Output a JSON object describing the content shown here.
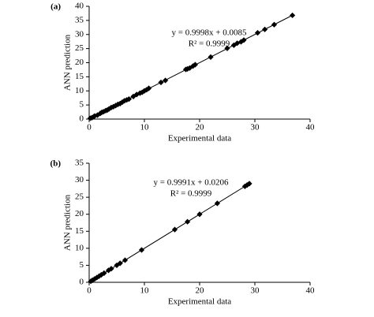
{
  "chart_data": [
    {
      "type": "scatter",
      "label": "(a)",
      "xlabel": "Experimental data",
      "ylabel": "ANN prediction",
      "annotations": [
        "y = 0.9998x + 0.0085",
        "R² = 0.9999"
      ],
      "x": [
        0.2,
        0.5,
        0.8,
        1.0,
        1.5,
        2.0,
        2.3,
        2.6,
        3.0,
        3.3,
        3.6,
        4.0,
        4.4,
        4.8,
        5.2,
        5.6,
        6.0,
        6.4,
        6.8,
        7.2,
        8.0,
        8.6,
        9.2,
        9.6,
        10.0,
        10.4,
        10.8,
        13.0,
        13.8,
        17.5,
        17.8,
        18.2,
        18.8,
        19.2,
        22.0,
        25.0,
        26.2,
        26.8,
        27.5,
        28.0,
        30.5,
        31.8,
        33.5,
        36.8
      ],
      "values": [
        0.3,
        0.5,
        0.8,
        1.1,
        1.4,
        2.0,
        2.4,
        2.6,
        3.0,
        3.2,
        3.6,
        4.1,
        4.4,
        4.8,
        5.2,
        5.5,
        6.0,
        6.5,
        6.8,
        7.1,
        8.0,
        8.7,
        9.2,
        9.5,
        10.0,
        10.4,
        10.9,
        13.0,
        13.7,
        17.6,
        17.8,
        18.1,
        18.8,
        19.3,
        22.0,
        25.1,
        26.2,
        26.9,
        27.4,
        28.0,
        30.6,
        31.8,
        33.5,
        36.8
      ],
      "color": "#000000",
      "xlim": [
        0,
        40
      ],
      "ylim": [
        0,
        40
      ],
      "xticks": [
        0,
        10,
        20,
        30,
        40
      ],
      "yticks": [
        0,
        5,
        10,
        15,
        20,
        25,
        30,
        35,
        40
      ]
    },
    {
      "type": "scatter",
      "label": "(b)",
      "xlabel": "Experimental data",
      "ylabel": "ANN prediction",
      "annotations": [
        "y = 0.9991x + 0.0206",
        "R² = 0.9999"
      ],
      "x": [
        0.3,
        0.6,
        1.0,
        1.4,
        1.8,
        2.2,
        2.7,
        3.5,
        4.0,
        5.0,
        5.6,
        6.5,
        9.5,
        15.5,
        17.8,
        20.0,
        23.2,
        28.2,
        28.6,
        29.0
      ],
      "values": [
        0.3,
        0.6,
        1.0,
        1.4,
        1.8,
        2.2,
        2.7,
        3.5,
        4.0,
        5.0,
        5.6,
        6.5,
        9.5,
        15.5,
        17.8,
        20.0,
        23.2,
        28.2,
        28.6,
        29.0
      ],
      "color": "#000000",
      "xlim": [
        0,
        40
      ],
      "ylim": [
        0,
        35
      ],
      "xticks": [
        0,
        10,
        20,
        30,
        40
      ],
      "yticks": [
        0,
        5,
        10,
        15,
        20,
        25,
        30,
        35
      ]
    }
  ]
}
